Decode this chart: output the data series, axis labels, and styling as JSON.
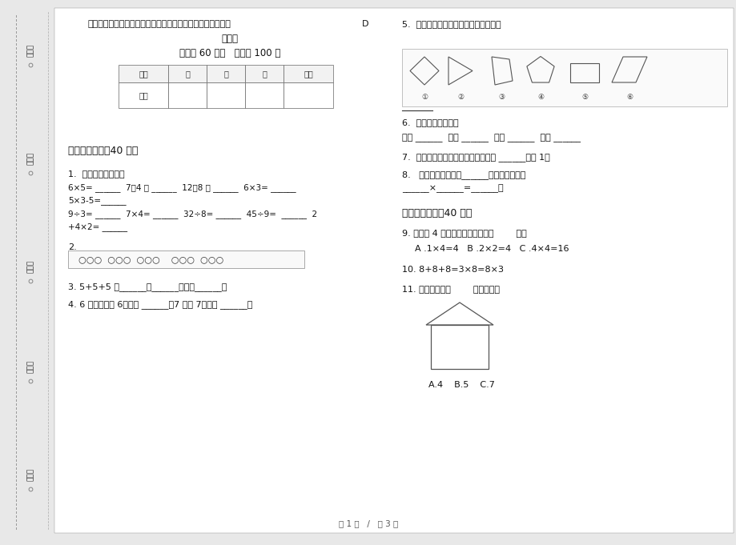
{
  "bg_color": "#ffffff",
  "title_main": "最新人教版过关试题精选二年级上学期小学数学期中模拟试卷",
  "title_d": "D",
  "subtitle": "卷练习",
  "time_score": "时间： 60 分钟   满分： 100 分",
  "section1_title": "一、基础练习（40 分）",
  "section2_title": "二、综合练习（40 分）",
  "q1_title": "1.  我是计算小能手。",
  "q1_line1a": "6×5= ______  7＋4 ＝ ______  12－8 ＝ ______  6×3= ______",
  "q1_line1b": "5×3-5=______",
  "q1_line2a": "9÷3= ______  7×4= ______  32÷8= ______  45÷9=  ______  2",
  "q1_line2b": "+4×2= ______",
  "q2_title": "2.",
  "q2_dots": "○○○  ○○○  ○○○    ○○○  ○○○",
  "q3": "3. 5+5+5 是______个______，和是______。",
  "q4": "4. 6 个加数都是 6，和是 ______，7 除以 7，商是 ______。",
  "q5_title": "5.  哪些是四边形？将序号填在横线上。",
  "q6_title": "6.  把口诀补充完整。",
  "q6_content": "二五 ______  三三 ______  四四 ______  一一 ______",
  "q7": "7.  笔算两位数加法，个位满十，要向 ______位进 1。",
  "q8_line1": "8.   我最喜欢的口诀是______，它可以计算：",
  "q8_line2": "______×______=______。",
  "q9_title": "9. 不能用 4 的乘法口诀计算的是（        ）。",
  "q9_options": "A .1×4=4   B .2×2=4   C .4×4=16",
  "q10": "10. 8+8+8=3×8=8×3",
  "q11_title": "11. 下图中，有（        ）个直角。",
  "q11_options": "A.4    B.5    C.7",
  "page_footer": "第 1 页   /   共 3 页",
  "table_headers": [
    "题号",
    "一",
    "二",
    "三",
    "总分"
  ],
  "table_row2": [
    "得分",
    "",
    "",
    "",
    ""
  ],
  "sidebar_labels": [
    "考号：",
    "考场：",
    "姓名：",
    "班级：",
    "学校："
  ]
}
